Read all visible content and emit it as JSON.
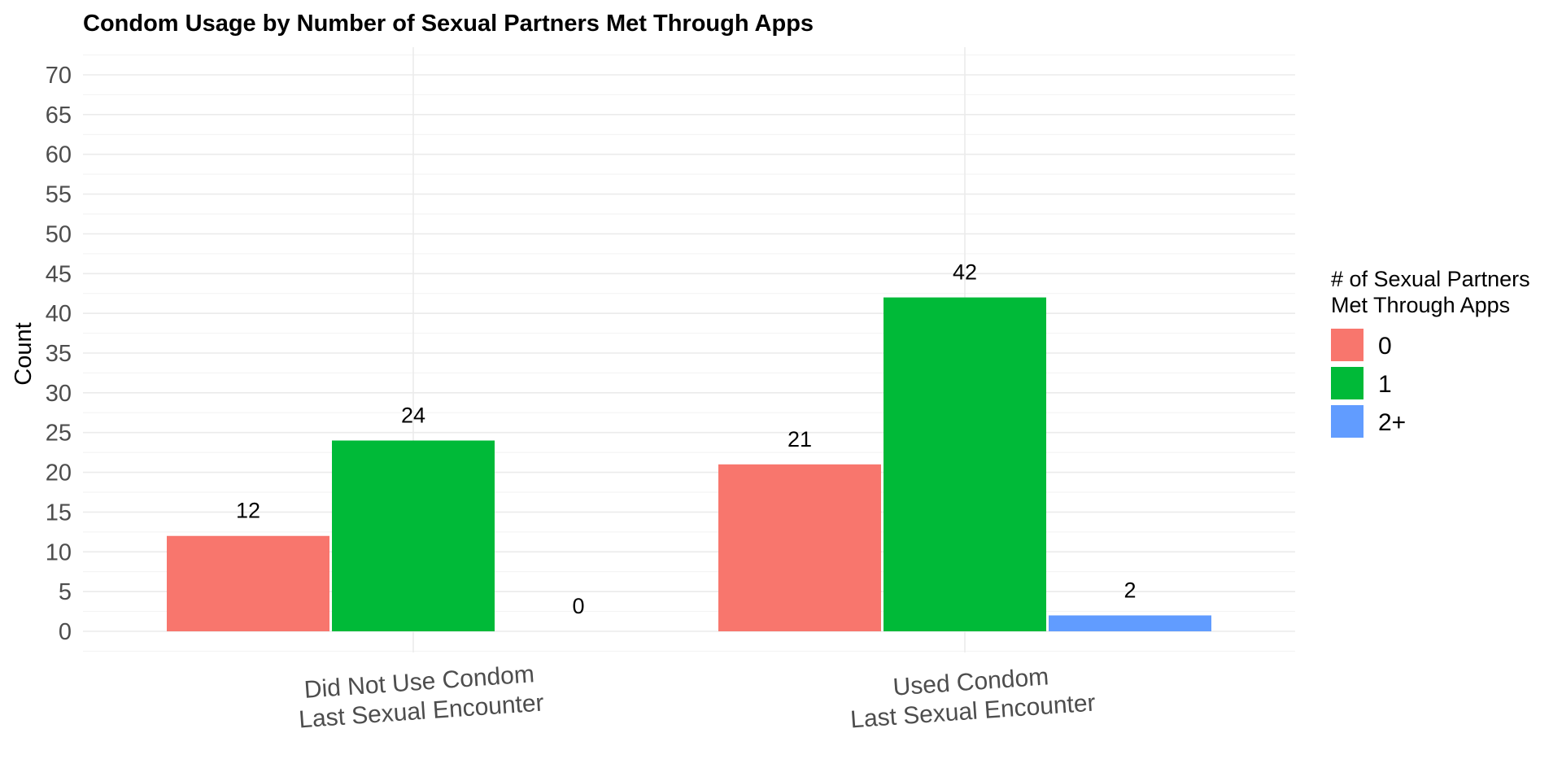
{
  "chart_data": {
    "type": "bar",
    "title": "Condom Usage by Number of Sexual Partners Met Through Apps",
    "xlabel": "",
    "ylabel": "Count",
    "categories": [
      [
        "Did Not Use Condom",
        "Last Sexual Encounter"
      ],
      [
        "Used Condom",
        "Last Sexual Encounter"
      ]
    ],
    "series": [
      {
        "name": "0",
        "color": "#F8766D",
        "values": [
          12,
          21
        ]
      },
      {
        "name": "1",
        "color": "#00BA38",
        "values": [
          24,
          42
        ]
      },
      {
        "name": "2+",
        "color": "#619CFF",
        "values": [
          0,
          2
        ]
      }
    ],
    "ylim": [
      0,
      72
    ],
    "yticks": [
      0,
      5,
      10,
      15,
      20,
      25,
      30,
      35,
      40,
      45,
      50,
      55,
      60,
      65,
      70
    ],
    "grid": true,
    "legend": {
      "title_lines": [
        "# of Sexual Partners",
        " Met Through Apps"
      ],
      "placement": "right"
    }
  }
}
